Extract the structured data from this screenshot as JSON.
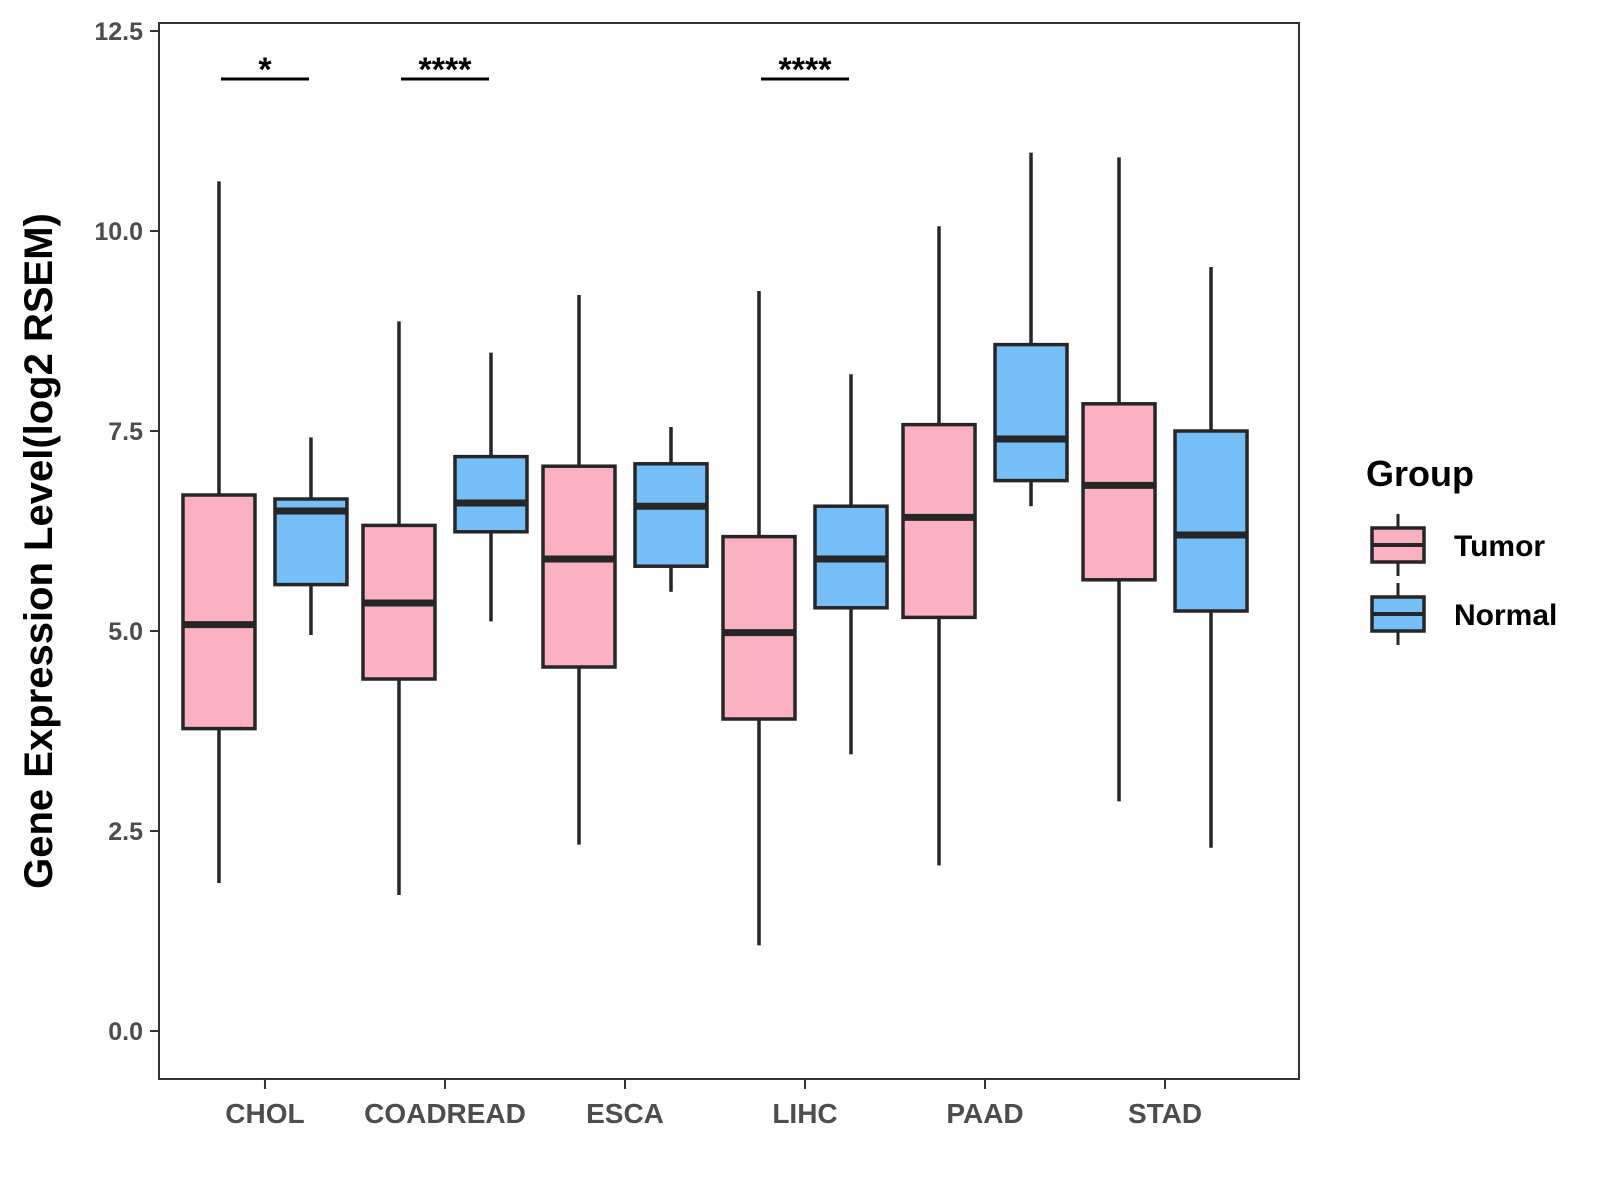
{
  "chart_data": {
    "type": "boxplot",
    "ylabel": "Gene Expression Level(log2 RSEM)",
    "xlabel": "",
    "ylim": [
      -0.6,
      12.6
    ],
    "yticks": [
      "0.0",
      "2.5",
      "5.0",
      "7.5",
      "10.0",
      "12.5"
    ],
    "ytick_values": [
      0,
      2.5,
      5,
      7.5,
      10,
      12.5
    ],
    "categories": [
      "CHOL",
      "COADREAD",
      "ESCA",
      "LIHC",
      "PAAD",
      "STAD"
    ],
    "legend": {
      "title": "Group",
      "position": "right",
      "entries": [
        {
          "name": "Tumor",
          "color": "#FBB1C1"
        },
        {
          "name": "Normal",
          "color": "#74BFF7"
        }
      ]
    },
    "series": [
      {
        "name": "Tumor",
        "color": "#FBB1C1",
        "boxes": [
          {
            "category": "CHOL",
            "min": 1.85,
            "q1": 3.78,
            "median": 5.08,
            "q3": 6.7,
            "max": 10.62
          },
          {
            "category": "COADREAD",
            "min": 1.7,
            "q1": 4.4,
            "median": 5.35,
            "q3": 6.32,
            "max": 8.87
          },
          {
            "category": "ESCA",
            "min": 2.33,
            "q1": 4.55,
            "median": 5.9,
            "q3": 7.06,
            "max": 9.2
          },
          {
            "category": "LIHC",
            "min": 1.07,
            "q1": 3.9,
            "median": 4.98,
            "q3": 6.18,
            "max": 9.25
          },
          {
            "category": "PAAD",
            "min": 2.07,
            "q1": 5.17,
            "median": 6.42,
            "q3": 7.58,
            "max": 10.06
          },
          {
            "category": "STAD",
            "min": 2.87,
            "q1": 5.64,
            "median": 6.82,
            "q3": 7.84,
            "max": 10.92
          }
        ]
      },
      {
        "name": "Normal",
        "color": "#74BFF7",
        "boxes": [
          {
            "category": "CHOL",
            "min": 4.95,
            "q1": 5.58,
            "median": 6.5,
            "q3": 6.65,
            "max": 7.42
          },
          {
            "category": "COADREAD",
            "min": 5.12,
            "q1": 6.24,
            "median": 6.6,
            "q3": 7.18,
            "max": 8.48
          },
          {
            "category": "ESCA",
            "min": 5.49,
            "q1": 5.81,
            "median": 6.56,
            "q3": 7.09,
            "max": 7.55
          },
          {
            "category": "LIHC",
            "min": 3.46,
            "q1": 5.29,
            "median": 5.9,
            "q3": 6.56,
            "max": 8.21
          },
          {
            "category": "PAAD",
            "min": 6.56,
            "q1": 6.88,
            "median": 7.4,
            "q3": 8.58,
            "max": 10.98
          },
          {
            "category": "STAD",
            "min": 2.29,
            "q1": 5.25,
            "median": 6.2,
            "q3": 7.5,
            "max": 9.55
          }
        ]
      }
    ],
    "annotations": [
      {
        "category": "CHOL",
        "label": "*",
        "y": 11.9
      },
      {
        "category": "COADREAD",
        "label": "****",
        "y": 11.9
      },
      {
        "category": "LIHC",
        "label": "****",
        "y": 11.9
      }
    ]
  }
}
